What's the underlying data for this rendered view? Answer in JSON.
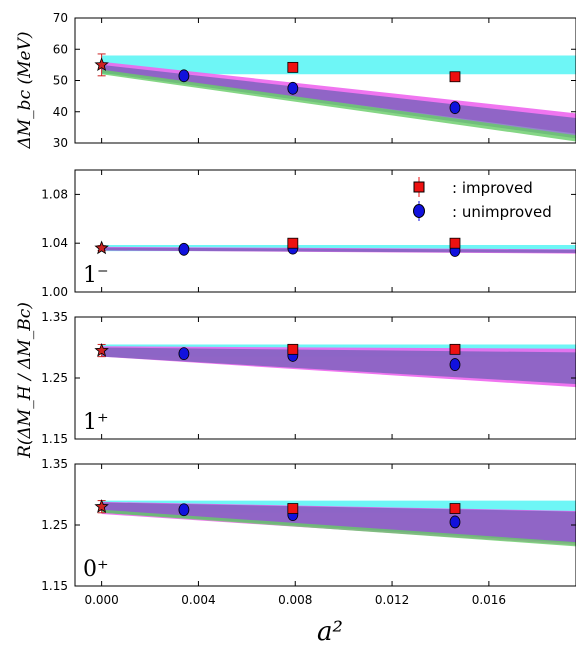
{
  "chart_data": {
    "type": "scatter",
    "x_axis": {
      "label": "a²",
      "range": [
        -0.0011,
        0.0196
      ],
      "ticks": [
        "0.000",
        "0.004",
        "0.008",
        "0.012",
        "0.016"
      ],
      "tick_values": [
        0.0,
        0.004,
        0.008,
        0.012,
        0.016
      ]
    },
    "ylabel_top": "ΔM_bc (MeV)",
    "ylabel_lower": "R(ΔM_H / ΔM_Bc)",
    "legend": {
      "placement": "top-right of second panel",
      "entries": [
        {
          "marker": "square",
          "color": "#ee1111",
          "label": ":  improved"
        },
        {
          "marker": "circle",
          "color": "#1111dd",
          "label": ": unimproved"
        }
      ]
    },
    "colors": {
      "improved": "#ee1111",
      "unimproved": "#1111dd",
      "continuum": "#cc2222",
      "band_cyan": "#66f5f5",
      "band_magenta": "#ee66ee",
      "band_purple": "#7060b8",
      "band_green": "#66cc66"
    },
    "panels": [
      {
        "id": "delta-mbc",
        "label": "",
        "ylim": [
          30,
          70
        ],
        "yticks": [
          "30",
          "40",
          "50",
          "60",
          "70"
        ],
        "ytick_values": [
          30,
          40,
          50,
          60,
          70
        ],
        "continuum": {
          "x": 0.0,
          "y": 55.0,
          "err": 3.5
        },
        "improved": [
          {
            "x": 0.0079,
            "y": 54.2,
            "err": 1.2
          },
          {
            "x": 0.0146,
            "y": 51.2,
            "err": 1.2
          }
        ],
        "unimproved": [
          {
            "x": 0.0034,
            "y": 51.5,
            "err": 1.2
          },
          {
            "x": 0.0079,
            "y": 47.5,
            "err": 1.5
          },
          {
            "x": 0.0146,
            "y": 41.3,
            "err": 1.3
          }
        ],
        "bands": [
          {
            "name": "cyan",
            "lower": [
              52.0,
              52.0
            ],
            "upper": [
              58.0,
              58.0
            ]
          },
          {
            "name": "magenta",
            "lower": [
              53.0,
              33.0
            ],
            "upper": [
              56.0,
              39.5
            ]
          },
          {
            "name": "purple",
            "lower": [
              52.5,
              31.5
            ],
            "upper": [
              55.0,
              38.0
            ]
          },
          {
            "name": "green",
            "lower": [
              52.0,
              30.5
            ],
            "upper": [
              53.5,
              32.5
            ]
          }
        ]
      },
      {
        "id": "one-minus",
        "label": "1⁻",
        "ylim": [
          1.0,
          1.1
        ],
        "yticks": [
          "1.00",
          "1.04",
          "1.08"
        ],
        "ytick_values": [
          1.0,
          1.04,
          1.08
        ],
        "continuum": {
          "x": 0.0,
          "y": 1.036,
          "err": 0.002
        },
        "improved": [
          {
            "x": 0.0079,
            "y": 1.04,
            "err": 0.003
          },
          {
            "x": 0.0146,
            "y": 1.04,
            "err": 0.003
          }
        ],
        "unimproved": [
          {
            "x": 0.0034,
            "y": 1.035,
            "err": 0.002
          },
          {
            "x": 0.0079,
            "y": 1.036,
            "err": 0.002
          },
          {
            "x": 0.0146,
            "y": 1.034,
            "err": 0.002
          }
        ],
        "bands": [
          {
            "name": "cyan",
            "lower": [
              1.0335,
              1.0335
            ],
            "upper": [
              1.0385,
              1.0385
            ]
          },
          {
            "name": "magenta",
            "lower": [
              1.034,
              1.0315
            ],
            "upper": [
              1.037,
              1.035
            ]
          },
          {
            "name": "purple",
            "lower": [
              1.034,
              1.032
            ],
            "upper": [
              1.0365,
              1.0345
            ]
          }
        ]
      },
      {
        "id": "one-plus",
        "label": "1⁺",
        "ylim": [
          1.15,
          1.35
        ],
        "yticks": [
          "1.15",
          "1.25",
          "1.35"
        ],
        "ytick_values": [
          1.15,
          1.25,
          1.35
        ],
        "continuum": {
          "x": 0.0,
          "y": 1.295,
          "err": 0.01
        },
        "improved": [
          {
            "x": 0.0079,
            "y": 1.297,
            "err": 0.006
          },
          {
            "x": 0.0146,
            "y": 1.297,
            "err": 0.006
          }
        ],
        "unimproved": [
          {
            "x": 0.0034,
            "y": 1.29,
            "err": 0.005
          },
          {
            "x": 0.0079,
            "y": 1.287,
            "err": 0.005
          },
          {
            "x": 0.0146,
            "y": 1.272,
            "err": 0.007
          }
        ],
        "bands": [
          {
            "name": "cyan",
            "lower": [
              1.285,
              1.285
            ],
            "upper": [
              1.305,
              1.305
            ]
          },
          {
            "name": "magenta",
            "lower": [
              1.285,
              1.235
            ],
            "upper": [
              1.302,
              1.298
            ]
          },
          {
            "name": "purple",
            "lower": [
              1.285,
              1.24
            ],
            "upper": [
              1.3,
              1.292
            ]
          }
        ]
      },
      {
        "id": "zero-plus",
        "label": "0⁺",
        "ylim": [
          1.15,
          1.35
        ],
        "yticks": [
          "1.15",
          "1.25",
          "1.35"
        ],
        "ytick_values": [
          1.15,
          1.25,
          1.35
        ],
        "continuum": {
          "x": 0.0,
          "y": 1.28,
          "err": 0.01
        },
        "improved": [
          {
            "x": 0.0079,
            "y": 1.277,
            "err": 0.006
          },
          {
            "x": 0.0146,
            "y": 1.277,
            "err": 0.006
          }
        ],
        "unimproved": [
          {
            "x": 0.0034,
            "y": 1.275,
            "err": 0.005
          },
          {
            "x": 0.0079,
            "y": 1.267,
            "err": 0.005
          },
          {
            "x": 0.0146,
            "y": 1.255,
            "err": 0.006
          }
        ],
        "bands": [
          {
            "name": "cyan",
            "lower": [
              1.27,
              1.27
            ],
            "upper": [
              1.29,
              1.29
            ]
          },
          {
            "name": "magenta",
            "lower": [
              1.268,
              1.217
            ],
            "upper": [
              1.288,
              1.273
            ]
          },
          {
            "name": "purple",
            "lower": [
              1.27,
              1.22
            ],
            "upper": [
              1.287,
              1.272
            ]
          },
          {
            "name": "green",
            "lower": [
              1.27,
              1.215
            ],
            "upper": [
              1.275,
              1.222
            ]
          }
        ]
      }
    ]
  }
}
